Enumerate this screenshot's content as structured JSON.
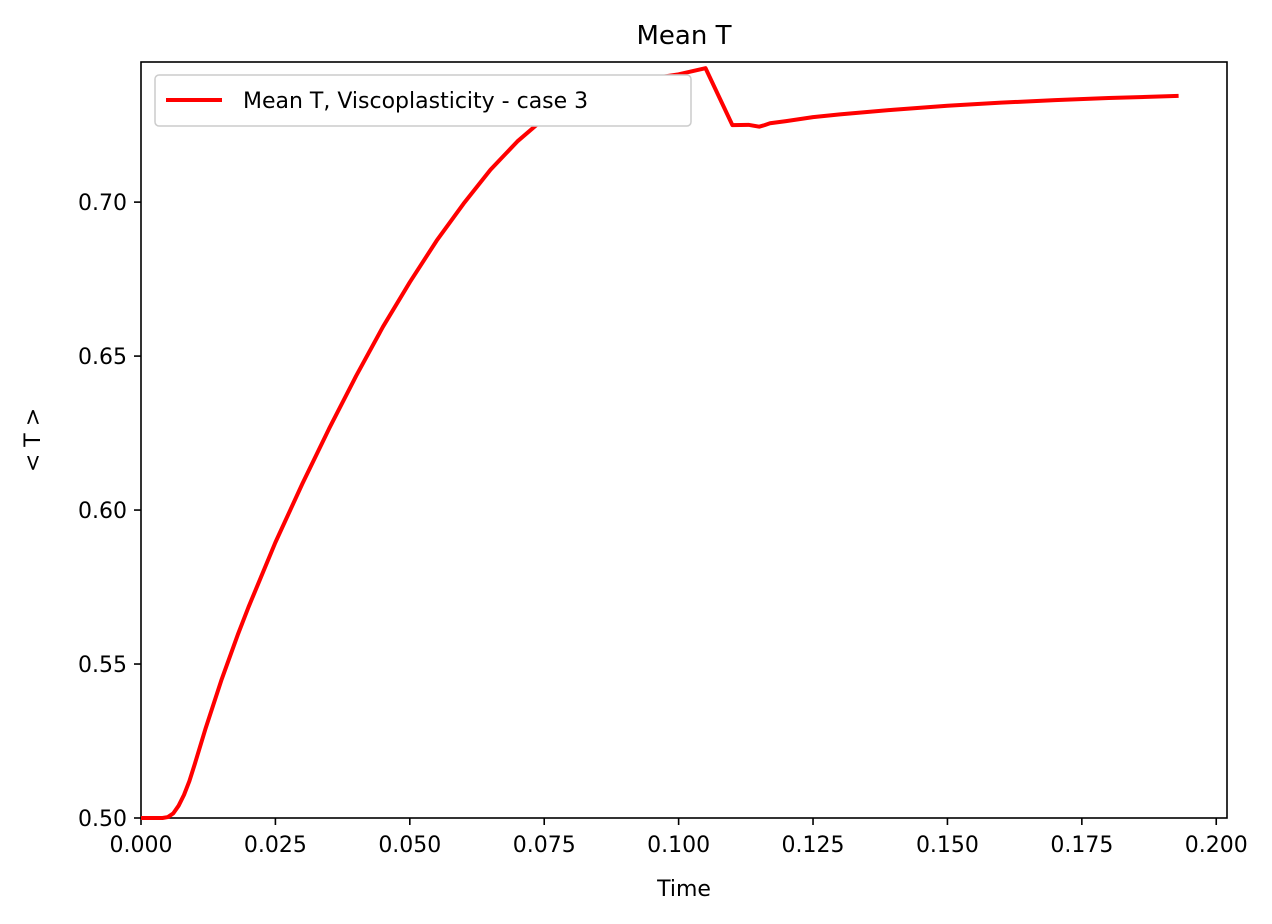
{
  "chart_data": {
    "type": "line",
    "title": "Mean T",
    "xlabel": "Time",
    "ylabel": "< T >",
    "xlim": [
      0.0,
      0.202
    ],
    "ylim": [
      0.5,
      0.7455
    ],
    "xticks": [
      "0.000",
      "0.025",
      "0.050",
      "0.075",
      "0.100",
      "0.125",
      "0.150",
      "0.175",
      "0.200"
    ],
    "xtick_values": [
      0.0,
      0.025,
      0.05,
      0.075,
      0.1,
      0.125,
      0.15,
      0.175,
      0.2
    ],
    "yticks": [
      "0.50",
      "0.55",
      "0.60",
      "0.65",
      "0.70"
    ],
    "ytick_values": [
      0.5,
      0.55,
      0.6,
      0.65,
      0.7
    ],
    "grid": false,
    "legend_position": "upper-left",
    "series": [
      {
        "name": "Mean T, Viscoplasticity - case 3",
        "color": "#ff0000",
        "x": [
          0.0,
          0.002,
          0.004,
          0.005,
          0.006,
          0.007,
          0.008,
          0.009,
          0.01,
          0.012,
          0.015,
          0.018,
          0.02,
          0.025,
          0.03,
          0.035,
          0.04,
          0.045,
          0.05,
          0.055,
          0.06,
          0.065,
          0.07,
          0.075,
          0.08,
          0.085,
          0.09,
          0.095,
          0.1,
          0.105,
          0.11,
          0.113,
          0.115,
          0.116,
          0.117,
          0.12,
          0.125,
          0.13,
          0.14,
          0.15,
          0.16,
          0.17,
          0.18,
          0.193
        ],
        "y": [
          0.5,
          0.5,
          0.5,
          0.5003,
          0.5015,
          0.504,
          0.5075,
          0.512,
          0.5175,
          0.529,
          0.545,
          0.5595,
          0.5685,
          0.5895,
          0.6085,
          0.6265,
          0.6435,
          0.6595,
          0.674,
          0.6875,
          0.6995,
          0.7105,
          0.7197,
          0.7272,
          0.7327,
          0.7363,
          0.7386,
          0.7402,
          0.7415,
          0.7435,
          0.725,
          0.7251,
          0.7245,
          0.725,
          0.7256,
          0.7263,
          0.7276,
          0.7285,
          0.73,
          0.7313,
          0.7323,
          0.7331,
          0.7338,
          0.7345
        ]
      }
    ]
  }
}
